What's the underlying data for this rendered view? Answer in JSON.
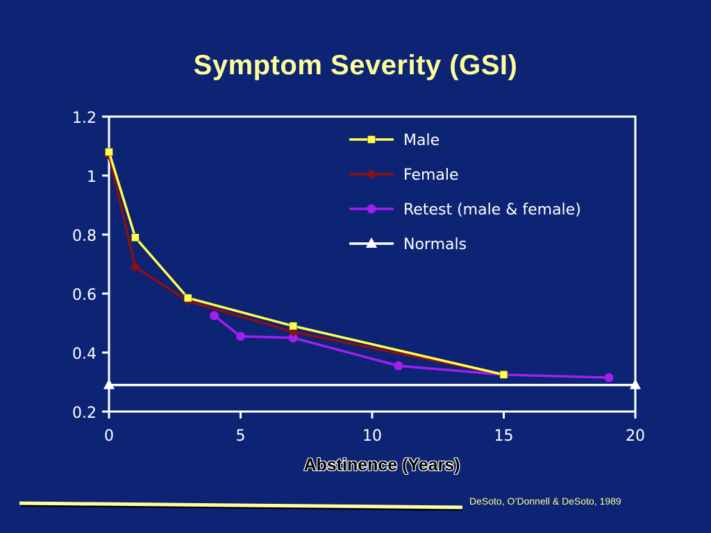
{
  "slide": {
    "title": "Symptom Severity (GSI)",
    "citation": "DeSoto, O’Donnell & DeSoto, 1989"
  },
  "colors": {
    "background": "#0d2373",
    "title": "#ffff99",
    "axis": "#ffffff",
    "male": "#ffff4d",
    "female": "#8b1010",
    "retest": "#a020f0",
    "normals": "#ffffff",
    "accent_bar": "#ffff99"
  },
  "chart_data": {
    "type": "line",
    "title": "Symptom Severity (GSI)",
    "xlabel": "Abstinence (Years)",
    "ylabel": "",
    "xlim": [
      0,
      20
    ],
    "ylim": [
      0.2,
      1.2
    ],
    "x_ticks": [
      "0",
      "5",
      "10",
      "15",
      "20"
    ],
    "y_ticks": [
      "0.2",
      "0.4",
      "0.6",
      "0.8",
      "1",
      "1.2"
    ],
    "x_tick_values": [
      0,
      5,
      10,
      15,
      20
    ],
    "y_tick_values": [
      0.2,
      0.4,
      0.6,
      0.8,
      1.0,
      1.2
    ],
    "grid": false,
    "legend_position": "top-right",
    "series": [
      {
        "name": "Male",
        "marker": "square",
        "color": "#ffff4d",
        "points": [
          [
            0,
            1.08
          ],
          [
            1,
            0.79
          ],
          [
            3,
            0.585
          ],
          [
            7,
            0.49
          ],
          [
            15,
            0.325
          ]
        ]
      },
      {
        "name": "Female",
        "marker": "diamond",
        "color": "#8b1010",
        "points": [
          [
            0,
            1.07
          ],
          [
            1,
            0.69
          ],
          [
            3,
            0.575
          ],
          [
            7,
            0.47
          ],
          [
            15,
            0.325
          ]
        ]
      },
      {
        "name": "Retest (male & female)",
        "marker": "circle",
        "color": "#a020f0",
        "points": [
          [
            4,
            0.525
          ],
          [
            5,
            0.455
          ],
          [
            7,
            0.45
          ],
          [
            11,
            0.355
          ],
          [
            15,
            0.325
          ],
          [
            19,
            0.315
          ]
        ]
      },
      {
        "name": "Normals",
        "marker": "triangle",
        "color": "#ffffff",
        "points": [
          [
            0,
            0.29
          ],
          [
            20,
            0.29
          ]
        ]
      }
    ]
  }
}
